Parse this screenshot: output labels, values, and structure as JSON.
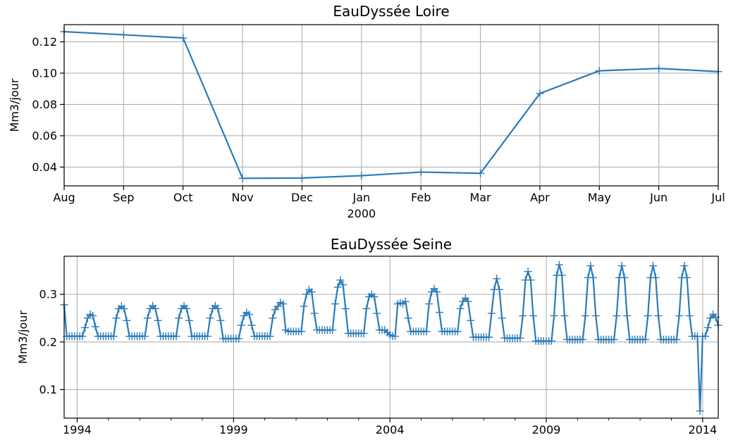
{
  "chart_data": [
    {
      "type": "line",
      "title": "EauDyssée Loire",
      "ylabel": "Mm3/jour",
      "xlabel": "",
      "x_axis": "monthly date",
      "x_range": [
        "1999-08",
        "2000-07"
      ],
      "ylim": [
        0.028,
        0.131
      ],
      "yticks": [
        0.04,
        0.06,
        0.08,
        0.1,
        0.12
      ],
      "ytick_labels": [
        "0.04",
        "0.06",
        "0.08",
        "0.10",
        "0.12"
      ],
      "xticks": [
        {
          "date": "1999-08",
          "label": "Aug",
          "sublabel": ""
        },
        {
          "date": "1999-09",
          "label": "Sep",
          "sublabel": ""
        },
        {
          "date": "1999-10",
          "label": "Oct",
          "sublabel": ""
        },
        {
          "date": "1999-11",
          "label": "Nov",
          "sublabel": ""
        },
        {
          "date": "1999-12",
          "label": "Dec",
          "sublabel": ""
        },
        {
          "date": "2000-01",
          "label": "Jan",
          "sublabel": "2000"
        },
        {
          "date": "2000-02",
          "label": "Feb",
          "sublabel": ""
        },
        {
          "date": "2000-03",
          "label": "Mar",
          "sublabel": ""
        },
        {
          "date": "2000-04",
          "label": "Apr",
          "sublabel": ""
        },
        {
          "date": "2000-05",
          "label": "May",
          "sublabel": ""
        },
        {
          "date": "2000-06",
          "label": "Jun",
          "sublabel": ""
        },
        {
          "date": "2000-07",
          "label": "Jul",
          "sublabel": ""
        }
      ],
      "grid": true,
      "legend": "none",
      "marker": "+",
      "color": "#2b7bb9",
      "series": [
        {
          "x": [
            "1999-08",
            "1999-09",
            "1999-10",
            "1999-11",
            "1999-12",
            "2000-01",
            "2000-02",
            "2000-03",
            "2000-04",
            "2000-05",
            "2000-06",
            "2000-07"
          ],
          "values": [
            0.1265,
            0.1245,
            0.1225,
            0.0328,
            0.033,
            0.0345,
            0.0368,
            0.036,
            0.087,
            0.1015,
            0.103,
            0.101
          ]
        }
      ]
    },
    {
      "type": "line",
      "title": "EauDyssée Seine",
      "ylabel": "Mm3/jour",
      "xlabel": "",
      "x_axis": "monthly date",
      "x_range": [
        "1993-08",
        "2014-07"
      ],
      "ylim": [
        0.04,
        0.38
      ],
      "yticks": [
        0.1,
        0.2,
        0.3
      ],
      "ytick_labels": [
        "0.1",
        "0.2",
        "0.3"
      ],
      "xticks": [
        {
          "date": "1994-01",
          "label": "1994"
        },
        {
          "date": "1999-01",
          "label": "1999"
        },
        {
          "date": "2004-01",
          "label": "2004"
        },
        {
          "date": "2009-01",
          "label": "2009"
        },
        {
          "date": "2014-01",
          "label": "2014"
        }
      ],
      "minor_tick_years": [
        1995,
        1996,
        1997,
        1998,
        2000,
        2001,
        2002,
        2003,
        2005,
        2006,
        2007,
        2008,
        2010,
        2011,
        2012,
        2013
      ],
      "grid": true,
      "legend": "none",
      "marker": "+",
      "color": "#2b7bb9",
      "series": [
        {
          "start": "1993-08",
          "frequency": "monthly",
          "values": [
            0.278,
            0.212,
            0.212,
            0.212,
            0.212,
            0.212,
            0.212,
            0.212,
            0.23,
            0.25,
            0.258,
            0.255,
            0.232,
            0.212,
            0.212,
            0.212,
            0.212,
            0.212,
            0.212,
            0.212,
            0.25,
            0.27,
            0.275,
            0.27,
            0.245,
            0.212,
            0.212,
            0.212,
            0.212,
            0.212,
            0.212,
            0.212,
            0.25,
            0.27,
            0.276,
            0.27,
            0.245,
            0.212,
            0.212,
            0.212,
            0.212,
            0.212,
            0.212,
            0.212,
            0.25,
            0.27,
            0.276,
            0.27,
            0.245,
            0.212,
            0.212,
            0.212,
            0.212,
            0.212,
            0.212,
            0.212,
            0.25,
            0.27,
            0.276,
            0.27,
            0.245,
            0.207,
            0.207,
            0.207,
            0.207,
            0.207,
            0.207,
            0.207,
            0.235,
            0.255,
            0.262,
            0.258,
            0.235,
            0.212,
            0.212,
            0.212,
            0.212,
            0.212,
            0.212,
            0.212,
            0.25,
            0.268,
            0.275,
            0.283,
            0.28,
            0.225,
            0.222,
            0.222,
            0.222,
            0.222,
            0.222,
            0.222,
            0.275,
            0.3,
            0.31,
            0.305,
            0.26,
            0.225,
            0.225,
            0.225,
            0.225,
            0.225,
            0.225,
            0.225,
            0.28,
            0.315,
            0.33,
            0.32,
            0.27,
            0.218,
            0.218,
            0.218,
            0.218,
            0.218,
            0.218,
            0.218,
            0.27,
            0.295,
            0.3,
            0.295,
            0.26,
            0.225,
            0.225,
            0.225,
            0.22,
            0.215,
            0.212,
            0.212,
            0.28,
            0.282,
            0.28,
            0.285,
            0.25,
            0.222,
            0.222,
            0.222,
            0.222,
            0.222,
            0.222,
            0.222,
            0.28,
            0.305,
            0.312,
            0.305,
            0.262,
            0.222,
            0.222,
            0.222,
            0.222,
            0.222,
            0.222,
            0.222,
            0.27,
            0.285,
            0.292,
            0.285,
            0.245,
            0.21,
            0.21,
            0.21,
            0.21,
            0.21,
            0.21,
            0.21,
            0.26,
            0.31,
            0.333,
            0.31,
            0.25,
            0.208,
            0.208,
            0.208,
            0.208,
            0.208,
            0.208,
            0.208,
            0.255,
            0.33,
            0.348,
            0.33,
            0.255,
            0.202,
            0.202,
            0.202,
            0.202,
            0.202,
            0.202,
            0.202,
            0.255,
            0.34,
            0.362,
            0.34,
            0.255,
            0.205,
            0.205,
            0.205,
            0.205,
            0.205,
            0.205,
            0.205,
            0.255,
            0.335,
            0.36,
            0.335,
            0.255,
            0.205,
            0.205,
            0.205,
            0.205,
            0.205,
            0.205,
            0.205,
            0.255,
            0.335,
            0.36,
            0.335,
            0.255,
            0.205,
            0.205,
            0.205,
            0.205,
            0.205,
            0.205,
            0.205,
            0.255,
            0.335,
            0.36,
            0.335,
            0.255,
            0.205,
            0.205,
            0.205,
            0.205,
            0.205,
            0.205,
            0.205,
            0.255,
            0.335,
            0.36,
            0.335,
            0.255,
            0.212,
            0.212,
            0.212,
            0.055,
            0.212,
            0.212,
            0.23,
            0.25,
            0.258,
            0.252,
            0.235
          ]
        }
      ]
    }
  ]
}
